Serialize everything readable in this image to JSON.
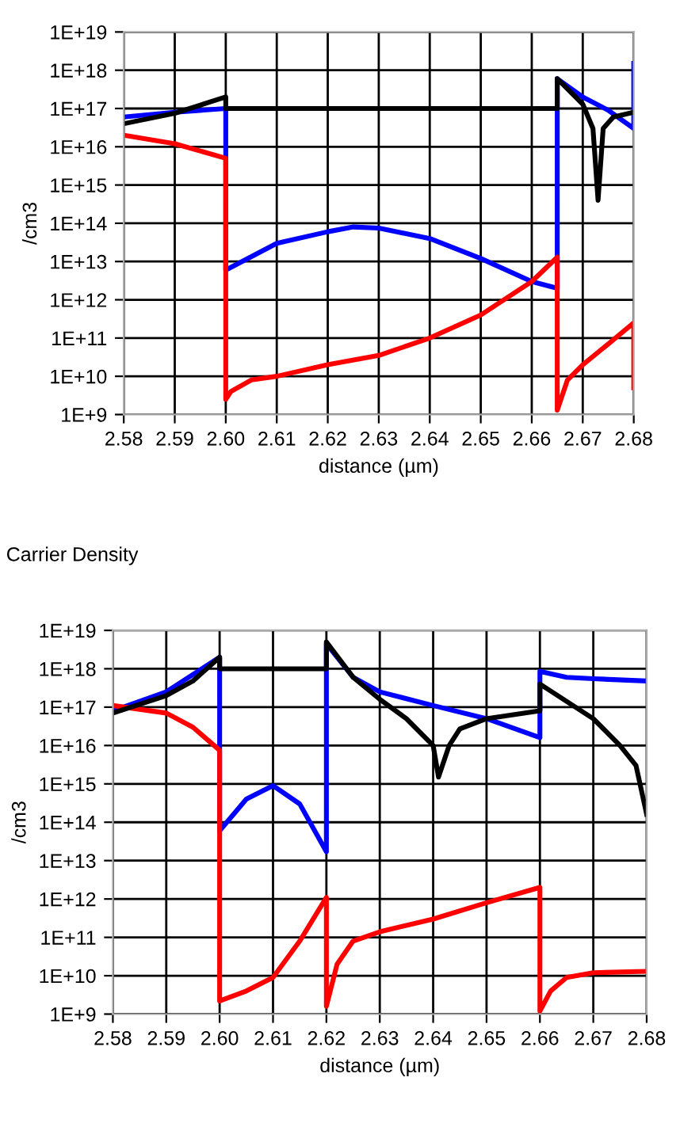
{
  "chart_data": [
    {
      "type": "line",
      "xlabel": "distance (µm)",
      "ylabel": "/cm3",
      "log": "y",
      "grid": true,
      "legend": false,
      "xlim": [
        2.58,
        2.68
      ],
      "xticks": [
        2.58,
        2.59,
        {
          "value": 2.6,
          "label": "2.60"
        },
        2.61,
        2.62,
        2.63,
        2.64,
        2.65,
        2.66,
        2.67,
        2.68
      ],
      "ylim": [
        1000000000.0,
        1e+19
      ],
      "yticks": [
        {
          "value": 1000000000.0,
          "label": "1E+9"
        },
        {
          "value": 10000000000.0,
          "label": "1E+10"
        },
        {
          "value": 100000000000.0,
          "label": "1E+11"
        },
        {
          "value": 1000000000000.0,
          "label": "1E+12"
        },
        {
          "value": 10000000000000.0,
          "label": "1E+13"
        },
        {
          "value": 100000000000000.0,
          "label": "1E+14"
        },
        {
          "value": 1000000000000000.0,
          "label": "1E+15"
        },
        {
          "value": 1e+16,
          "label": "1E+16"
        },
        {
          "value": 1e+17,
          "label": "1E+17"
        },
        {
          "value": 1e+18,
          "label": "1E+18"
        },
        {
          "value": 1e+19,
          "label": "1E+19"
        }
      ],
      "series": [
        {
          "color": "#0000ff",
          "x": [
            2.58,
            2.59,
            2.6,
            2.6,
            2.61,
            2.62,
            2.625,
            2.63,
            2.64,
            2.65,
            2.66,
            2.665,
            2.665,
            2.67,
            2.675,
            2.68,
            2.68
          ],
          "values": [
            6e+16,
            8e+16,
            1e+17,
            6000000000000.0,
            30000000000000.0,
            60000000000000.0,
            80000000000000.0,
            75000000000000.0,
            40000000000000.0,
            12000000000000.0,
            3000000000000.0,
            2000000000000.0,
            6e+17,
            2e+17,
            9e+16,
            3e+16,
            1.5e+18
          ]
        },
        {
          "color": "#ff0000",
          "x": [
            2.58,
            2.59,
            2.6,
            2.6,
            2.601,
            2.605,
            2.61,
            2.62,
            2.63,
            2.64,
            2.65,
            2.66,
            2.665,
            2.665,
            2.667,
            2.67,
            2.675,
            2.68,
            2.68
          ],
          "values": [
            2e+16,
            1.2e+16,
            5000000000000000.0,
            2500000000.0,
            4000000000.0,
            8000000000.0,
            10000000000.0,
            20000000000.0,
            35000000000.0,
            100000000000.0,
            400000000000.0,
            3000000000000.0,
            13000000000000.0,
            1300000000.0,
            8000000000.0,
            20000000000.0,
            70000000000.0,
            250000000000.0,
            5000000000.0
          ]
        },
        {
          "color": "#000000",
          "x": [
            2.58,
            2.59,
            2.6,
            2.6,
            2.665,
            2.665,
            2.67,
            2.672,
            2.673,
            2.674,
            2.676,
            2.68
          ],
          "values": [
            4e+16,
            7.5e+16,
            2e+17,
            1e+17,
            1e+17,
            6e+17,
            1.3e+17,
            3e+16,
            400000000000000.0,
            3e+16,
            6e+16,
            8e+16
          ]
        }
      ]
    },
    {
      "type": "line",
      "title": "Carrier Density",
      "xlabel": "distance (µm)",
      "ylabel": "/cm3",
      "log": "y",
      "grid": true,
      "legend": false,
      "xlim": [
        2.58,
        2.68
      ],
      "xticks": [
        2.58,
        2.59,
        {
          "value": 2.6,
          "label": "2.60"
        },
        2.61,
        2.62,
        2.63,
        2.64,
        2.65,
        2.66,
        2.67,
        2.68
      ],
      "ylim": [
        1000000000.0,
        1e+19
      ],
      "yticks": [
        {
          "value": 1000000000.0,
          "label": "1E+9"
        },
        {
          "value": 10000000000.0,
          "label": "1E+10"
        },
        {
          "value": 100000000000.0,
          "label": "1E+11"
        },
        {
          "value": 1000000000000.0,
          "label": "1E+12"
        },
        {
          "value": 10000000000000.0,
          "label": "1E+13"
        },
        {
          "value": 100000000000000.0,
          "label": "1E+14"
        },
        {
          "value": 1000000000000000.0,
          "label": "1E+15"
        },
        {
          "value": 1e+16,
          "label": "1E+16"
        },
        {
          "value": 1e+17,
          "label": "1E+17"
        },
        {
          "value": 1e+18,
          "label": "1E+18"
        },
        {
          "value": 1e+19,
          "label": "1E+19"
        }
      ],
      "series": [
        {
          "color": "#0000ff",
          "x": [
            2.58,
            2.59,
            2.6,
            2.6,
            2.6,
            2.605,
            2.61,
            2.615,
            2.62,
            2.62,
            2.625,
            2.63,
            2.64,
            2.65,
            2.66,
            2.66,
            2.665,
            2.67,
            2.68
          ],
          "values": [
            8e+16,
            2.5e+17,
            2e+18,
            7000000000000000.0,
            60000000000000.0,
            400000000000000.0,
            900000000000000.0,
            300000000000000.0,
            17000000000000.0,
            4.5e+18,
            6e+17,
            2.5e+17,
            1.1e+17,
            5e+16,
            1.6e+16,
            8.5e+17,
            6e+17,
            5.5e+17,
            4.8e+17
          ]
        },
        {
          "color": "#ff0000",
          "x": [
            2.58,
            2.59,
            2.595,
            2.6,
            2.6,
            2.605,
            2.61,
            2.615,
            2.62,
            2.62,
            2.622,
            2.625,
            2.63,
            2.64,
            2.65,
            2.66,
            2.66,
            2.662,
            2.665,
            2.67,
            2.68
          ],
          "values": [
            1.1e+17,
            7e+16,
            3e+16,
            7500000000000000.0,
            2200000000.0,
            4000000000.0,
            9000000000.0,
            80000000000.0,
            1100000000000.0,
            1600000000.0,
            20000000000.0,
            80000000000.0,
            140000000000.0,
            300000000000.0,
            800000000000.0,
            2000000000000.0,
            1200000000.0,
            4000000000.0,
            9000000000.0,
            12000000000.0,
            13000000000.0
          ]
        },
        {
          "color": "#000000",
          "x": [
            2.58,
            2.59,
            2.595,
            2.6,
            2.6,
            2.62,
            2.62,
            2.625,
            2.63,
            2.635,
            2.64,
            2.641,
            2.643,
            2.645,
            2.65,
            2.66,
            2.66,
            2.67,
            2.675,
            2.678,
            2.68
          ],
          "values": [
            7e+16,
            2e+17,
            4.8e+17,
            2e+18,
            1e+18,
            1e+18,
            5e+18,
            6e+17,
            1.6e+17,
            5e+16,
            1e+16,
            1500000000000000.0,
            1e+16,
            2.7e+16,
            5e+16,
            8e+16,
            4e+17,
            5e+16,
            1e+16,
            3000000000000000.0,
            160000000000000.0
          ]
        }
      ]
    }
  ]
}
